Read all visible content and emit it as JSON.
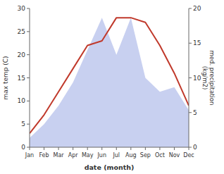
{
  "chart_data": {
    "type": "line",
    "x_label": "date (month)",
    "y_label": "max temp (C)",
    "y2_label": "med. precipitation\n(kg/m2)",
    "categories": [
      "Jan",
      "Feb",
      "Mar",
      "Apr",
      "May",
      "Jun",
      "Jul",
      "Aug",
      "Sep",
      "Oct",
      "Nov",
      "Dec"
    ],
    "series": [
      {
        "type": "area",
        "color": "#c8d0f0",
        "values": [
          2,
          5,
          9,
          14,
          21,
          28,
          20,
          28,
          15,
          12,
          13,
          8
        ]
      },
      {
        "type": "line",
        "color": "#c0392b",
        "values": [
          3,
          7,
          12,
          17,
          22,
          23,
          28,
          28,
          27,
          22,
          16,
          9
        ]
      }
    ],
    "ylim": [
      0,
      30
    ],
    "yticks": [
      0,
      5,
      10,
      15,
      20,
      25,
      30
    ],
    "y2lim": [
      0,
      20
    ],
    "y2ticks": [
      0,
      5,
      10,
      15,
      20
    ],
    "grid": false
  }
}
